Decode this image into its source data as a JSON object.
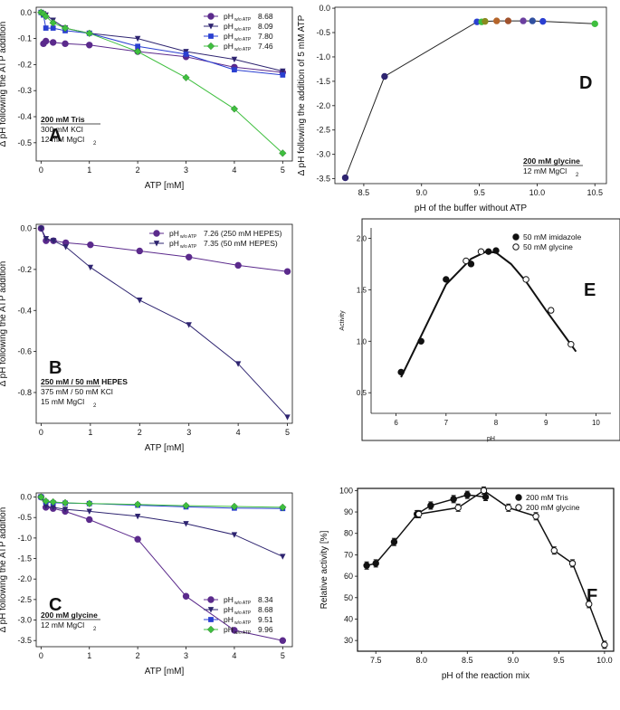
{
  "chart_data": [
    {
      "id": "A",
      "panel_letter": "A",
      "type": "line",
      "xlabel": "ATP [mM]",
      "ylabel": "Δ pH following the ATP addition",
      "xlim": [
        -0.1,
        5.2
      ],
      "ylim": [
        -0.57,
        0.02
      ],
      "xticks": [
        0,
        1,
        2,
        3,
        4,
        5
      ],
      "xtick_labels": [
        "0",
        "1",
        "2",
        "3",
        "4",
        "5"
      ],
      "yticks": [
        0,
        -0.1,
        -0.2,
        -0.3,
        -0.4,
        -0.5
      ],
      "ytick_labels": [
        "0.0",
        "-0.1",
        "-0.2",
        "-0.3",
        "-0.4",
        "-0.5"
      ],
      "legend_position": "top-right",
      "legend_prefix": "pH",
      "legend_subscript": "w/o ATP",
      "annotation_lines": [
        "200 mM Tris",
        "300 mM KCl",
        "12 mM MgCl",
        "2"
      ],
      "series": [
        {
          "name": "8.68",
          "color": "#5b2a8c",
          "marker": "circle",
          "x": [
            0.05,
            0.1,
            0.25,
            0.5,
            1,
            2,
            3,
            4,
            5
          ],
          "y": [
            -0.12,
            -0.11,
            -0.115,
            -0.12,
            -0.125,
            -0.15,
            -0.17,
            -0.21,
            -0.23
          ]
        },
        {
          "name": "8.09",
          "color": "#2e2470",
          "marker": "triangle",
          "x": [
            0,
            0.05,
            0.1,
            0.25,
            0.5,
            1,
            2,
            3,
            4,
            5
          ],
          "y": [
            0,
            -0.005,
            -0.01,
            -0.03,
            -0.06,
            -0.08,
            -0.1,
            -0.15,
            -0.18,
            -0.225
          ]
        },
        {
          "name": "7.80",
          "color": "#2a3fd1",
          "marker": "square",
          "x": [
            0,
            0.05,
            0.1,
            0.25,
            0.5,
            1,
            2,
            3,
            4,
            5
          ],
          "y": [
            0,
            -0.01,
            -0.06,
            -0.06,
            -0.07,
            -0.08,
            -0.13,
            -0.16,
            -0.22,
            -0.24
          ]
        },
        {
          "name": "7.46",
          "color": "#3fbf3f",
          "marker": "diamond",
          "x": [
            0,
            0.05,
            0.1,
            0.25,
            0.5,
            1,
            2,
            3,
            4,
            5
          ],
          "y": [
            0,
            -0.005,
            -0.015,
            -0.04,
            -0.06,
            -0.08,
            -0.15,
            -0.25,
            -0.37,
            -0.54
          ]
        }
      ]
    },
    {
      "id": "B",
      "panel_letter": "B",
      "type": "line",
      "xlabel": "ATP [mM]",
      "ylabel": "Δ pH following the ATP addition",
      "xlim": [
        -0.1,
        5.1
      ],
      "ylim": [
        -0.95,
        0.02
      ],
      "xticks": [
        0,
        1,
        2,
        3,
        4,
        5
      ],
      "xtick_labels": [
        "0",
        "1",
        "2",
        "3",
        "4",
        "5"
      ],
      "yticks": [
        0,
        -0.2,
        -0.4,
        -0.6,
        -0.8
      ],
      "ytick_labels": [
        "0.0",
        "-0.2",
        "-0.4",
        "-0.6",
        "-0.8"
      ],
      "legend_position": "top-right",
      "legend_prefix": "pH",
      "legend_subscript": "w/o ATP",
      "annotation_lines": [
        "250 mM / 50 mM HEPES",
        "375 mM / 50 mM KCl",
        "15 mM MgCl",
        "2"
      ],
      "series": [
        {
          "name": "7.26 (250 mM HEPES)",
          "color": "#5b2a8c",
          "marker": "circle",
          "x": [
            0,
            0.1,
            0.25,
            0.5,
            1,
            2,
            3,
            4,
            5
          ],
          "y": [
            0,
            -0.06,
            -0.06,
            -0.07,
            -0.08,
            -0.11,
            -0.14,
            -0.18,
            -0.21
          ]
        },
        {
          "name": "7.35 (50 mM HEPES)",
          "color": "#2e2470",
          "marker": "triangle",
          "x": [
            0,
            0.1,
            0.25,
            0.5,
            1,
            2,
            3,
            4,
            5
          ],
          "y": [
            0,
            -0.05,
            -0.06,
            -0.09,
            -0.19,
            -0.35,
            -0.47,
            -0.66,
            -0.92
          ]
        }
      ]
    },
    {
      "id": "C",
      "panel_letter": "C",
      "type": "line",
      "xlabel": "ATP [mM]",
      "ylabel": "Δ pH following the ATP addition",
      "xlim": [
        -0.1,
        5.2
      ],
      "ylim": [
        -3.65,
        0.1
      ],
      "xticks": [
        0,
        1,
        2,
        3,
        4,
        5
      ],
      "xtick_labels": [
        "0",
        "1",
        "2",
        "3",
        "4",
        "5"
      ],
      "yticks": [
        0,
        -0.5,
        -1,
        -1.5,
        -2,
        -2.5,
        -3,
        -3.5
      ],
      "ytick_labels": [
        "0.0",
        "-0.5",
        "-1.0",
        "-1.5",
        "-2.0",
        "-2.5",
        "-3.0",
        "-3.5"
      ],
      "legend_position": "bottom-right",
      "legend_prefix": "pH",
      "legend_subscript": "w/o ATP",
      "annotation_lines": [
        "200 mM glycine",
        "12 mM MgCl",
        "2"
      ],
      "series": [
        {
          "name": "8.34",
          "color": "#5b2a8c",
          "marker": "circle",
          "x": [
            0,
            0.1,
            0.25,
            0.5,
            1,
            2,
            3,
            4,
            5
          ],
          "y": [
            0,
            -0.25,
            -0.28,
            -0.35,
            -0.55,
            -1.03,
            -2.42,
            -3.25,
            -3.5
          ]
        },
        {
          "name": "8.68",
          "color": "#2e2470",
          "marker": "triangle",
          "x": [
            0,
            0.1,
            0.25,
            0.5,
            1,
            2,
            3,
            4,
            5
          ],
          "y": [
            0,
            -0.22,
            -0.25,
            -0.3,
            -0.35,
            -0.47,
            -0.65,
            -0.92,
            -1.45
          ]
        },
        {
          "name": "9.51",
          "color": "#2a3fd1",
          "marker": "square",
          "x": [
            0,
            0.1,
            0.25,
            0.5,
            1,
            2,
            3,
            4,
            5
          ],
          "y": [
            0,
            -0.12,
            -0.14,
            -0.15,
            -0.16,
            -0.2,
            -0.24,
            -0.27,
            -0.28
          ]
        },
        {
          "name": "9.96",
          "color": "#3fbf3f",
          "marker": "diamond",
          "x": [
            0,
            0.1,
            0.25,
            0.5,
            1,
            2,
            3,
            4,
            5
          ],
          "y": [
            0,
            -0.1,
            -0.12,
            -0.14,
            -0.16,
            -0.18,
            -0.21,
            -0.23,
            -0.25
          ]
        }
      ]
    },
    {
      "id": "D",
      "panel_letter": "D",
      "type": "line",
      "xlabel": "pH of the buffer without ATP",
      "ylabel": "Δ pH following the addition of 5 mM ATP",
      "xlim": [
        8.25,
        10.6
      ],
      "ylim": [
        -3.6,
        0.02
      ],
      "xticks": [
        8.5,
        9,
        9.5,
        10,
        10.5
      ],
      "xtick_labels": [
        "8.5",
        "9.0",
        "9.5",
        "10.0",
        "10.5"
      ],
      "yticks": [
        0,
        -0.5,
        -1,
        -1.5,
        -2,
        -2.5,
        -3,
        -3.5
      ],
      "ytick_labels": [
        "0.0",
        "-0.5",
        "-1.0",
        "-1.5",
        "-2.0",
        "-2.5",
        "-3.0",
        "-3.5"
      ],
      "annotation_lines": [
        "200 mM glycine",
        "12 mM MgCl",
        "2"
      ],
      "series": [
        {
          "name": "5 mM ATP",
          "color": "#222222",
          "marker": "circle",
          "x": [
            8.34,
            8.68,
            9.48,
            9.52,
            9.55,
            9.65,
            9.75,
            9.88,
            9.96,
            10.05,
            10.5
          ],
          "y": [
            -3.48,
            -1.4,
            -0.28,
            -0.28,
            -0.27,
            -0.26,
            -0.26,
            -0.26,
            -0.26,
            -0.27,
            -0.32
          ],
          "point_colors": [
            "#2e2470",
            "#2e2470",
            "#2a3fd1",
            "#3fbf3f",
            "#8a8a1f",
            "#b5652a",
            "#a0522d",
            "#6b3fa0",
            "#3050a0",
            "#2a3fd1",
            "#3fbf3f"
          ]
        }
      ]
    },
    {
      "id": "E",
      "panel_letter": "E",
      "type": "scatter",
      "xlabel": "pH",
      "ylabel": "Activity",
      "xlim": [
        5.5,
        10.3
      ],
      "ylim": [
        0.3,
        2.1
      ],
      "xticks": [
        6,
        7,
        8,
        9,
        10
      ],
      "xtick_labels": [
        "6",
        "7",
        "8",
        "9",
        "10"
      ],
      "yticks": [
        0.5,
        1.0,
        1.5,
        2.0
      ],
      "ytick_labels": [
        "0.5",
        "1.0",
        "1.5",
        "2.0"
      ],
      "legend_position": "top-right",
      "series": [
        {
          "name": "50 mM imidazole",
          "color": "#111111",
          "marker": "circle-filled",
          "x": [
            6.1,
            6.5,
            7.0,
            7.5,
            7.85,
            8.0
          ],
          "y": [
            0.7,
            1.0,
            1.6,
            1.75,
            1.87,
            1.88
          ]
        },
        {
          "name": "50 mM glycine",
          "color": "#111111",
          "marker": "circle-open",
          "x": [
            7.4,
            7.7,
            8.6,
            9.1,
            9.5
          ],
          "y": [
            1.78,
            1.87,
            1.6,
            1.3,
            0.97
          ]
        }
      ],
      "fit_curve": {
        "x": [
          6.1,
          6.5,
          7.0,
          7.5,
          7.8,
          8.0,
          8.3,
          8.6,
          9.0,
          9.3,
          9.6
        ],
        "y": [
          0.65,
          1.05,
          1.55,
          1.8,
          1.87,
          1.86,
          1.75,
          1.58,
          1.3,
          1.1,
          0.9
        ]
      }
    },
    {
      "id": "F",
      "panel_letter": "F",
      "type": "line",
      "xlabel": "pH of the reaction mix",
      "ylabel": "Relative activity [%]",
      "xlim": [
        7.3,
        10.1
      ],
      "ylim": [
        25,
        101
      ],
      "xticks": [
        7.5,
        8,
        8.5,
        9,
        9.5,
        10
      ],
      "xtick_labels": [
        "7.5",
        "8.0",
        "8.5",
        "9.0",
        "9.5",
        "10.0"
      ],
      "yticks": [
        30,
        40,
        50,
        60,
        70,
        80,
        90,
        100
      ],
      "ytick_labels": [
        "30",
        "40",
        "50",
        "60",
        "70",
        "80",
        "90",
        "100"
      ],
      "legend_position": "top-right",
      "series": [
        {
          "name": "200 mM Tris",
          "color": "#111111",
          "marker": "circle-filled",
          "x": [
            7.4,
            7.5,
            7.7,
            7.95,
            8.1,
            8.35,
            8.5,
            8.7
          ],
          "y": [
            65,
            66,
            76,
            89,
            93,
            96,
            98,
            97
          ]
        },
        {
          "name": "200 mM glycine",
          "color": "#111111",
          "marker": "circle-open",
          "x": [
            7.97,
            8.4,
            8.68,
            8.95,
            9.25,
            9.45,
            9.65,
            9.83,
            10.0
          ],
          "y": [
            89,
            92,
            100,
            92,
            88,
            72,
            66,
            47,
            28
          ]
        }
      ]
    }
  ]
}
